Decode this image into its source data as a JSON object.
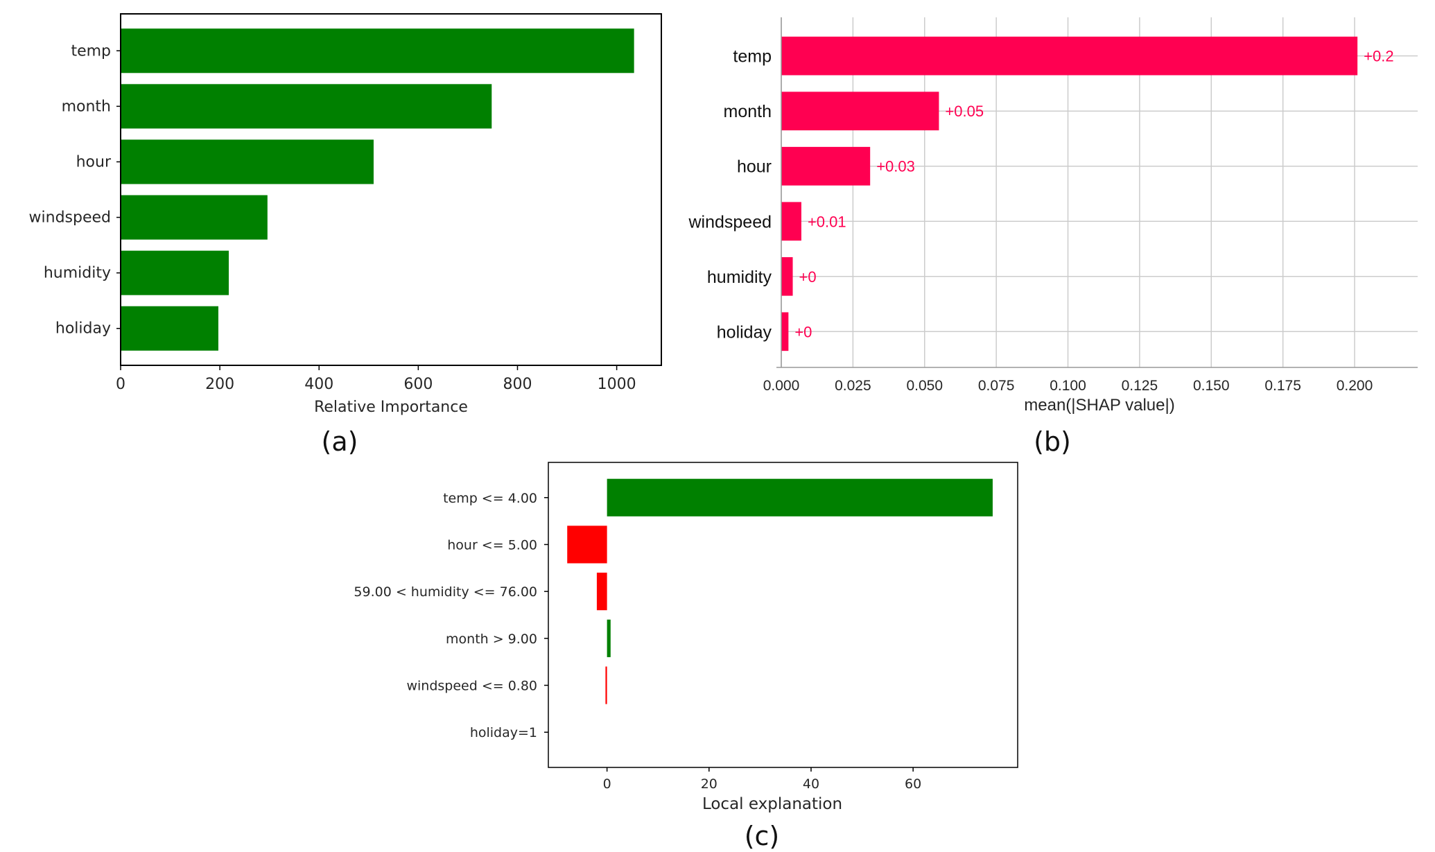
{
  "chart_data": [
    {
      "type": "bar",
      "orientation": "horizontal",
      "caption": "(a)",
      "categories": [
        "temp",
        "month",
        "hour",
        "windspeed",
        "humidity",
        "holiday"
      ],
      "values": [
        1035,
        748,
        510,
        296,
        218,
        197
      ],
      "xlabel": "Relative Importance",
      "ylabel": "",
      "xlim": [
        0,
        1090
      ],
      "xticks": [
        "0",
        "200",
        "400",
        "600",
        "800",
        "1000"
      ],
      "grid": false,
      "bar_color": "#008000"
    },
    {
      "type": "bar",
      "orientation": "horizontal",
      "caption": "(b)",
      "categories": [
        "temp",
        "month",
        "hour",
        "windspeed",
        "humidity",
        "holiday"
      ],
      "values": [
        0.201,
        0.055,
        0.031,
        0.007,
        0.004,
        0.0025
      ],
      "data_labels": [
        "+0.2",
        "+0.05",
        "+0.03",
        "+0.01",
        "+0",
        "+0"
      ],
      "xlabel": "mean(|SHAP value|)",
      "ylabel": "",
      "xlim": [
        0,
        0.222
      ],
      "xticks": [
        "0.000",
        "0.025",
        "0.050",
        "0.075",
        "0.100",
        "0.125",
        "0.150",
        "0.175",
        "0.200"
      ],
      "grid": true,
      "bar_color": "#ff0051"
    },
    {
      "type": "bar",
      "orientation": "horizontal",
      "caption": "(c)",
      "categories": [
        "temp <= 4.00",
        "hour <= 5.00",
        "59.00 < humidity <= 76.00",
        "month > 9.00",
        "windspeed <= 0.80",
        "holiday=1"
      ],
      "values": [
        75.6,
        -7.8,
        -2.0,
        0.7,
        -0.3,
        0.0
      ],
      "xlabel": "Local explanation",
      "ylabel": "",
      "xlim": [
        -11.5,
        80.5
      ],
      "xticks": [
        "0",
        "20",
        "40",
        "60"
      ],
      "grid": false,
      "positive_color": "#008000",
      "negative_color": "#ff0000"
    }
  ]
}
